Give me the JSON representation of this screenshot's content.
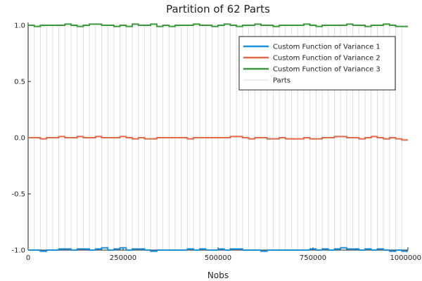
{
  "chart_data": {
    "type": "line",
    "title": "Partition of 62 Parts",
    "xlabel": "Nobs",
    "ylabel": "",
    "xlim": [
      0,
      1000000
    ],
    "ylim": [
      -1.0,
      1.0
    ],
    "x_ticks": [
      0,
      250000,
      500000,
      750000,
      1000000
    ],
    "x_tick_labels": [
      "0",
      "250000",
      "500000",
      "750000",
      "1000000"
    ],
    "y_ticks": [
      -1.0,
      -0.5,
      0.0,
      0.5,
      1.0
    ],
    "y_tick_labels": [
      "-1.0",
      "-0.5",
      "0.0",
      "0.5",
      "1.0"
    ],
    "parts": 62,
    "legend_position": "top-right",
    "series": [
      {
        "name": "Custom Function of Variance 1",
        "color": "#1e8fd8",
        "values": [
          -1.0,
          -1.0,
          -1.01,
          -1.0,
          -1.0,
          -0.99,
          -0.99,
          -1.0,
          -0.99,
          -0.99,
          -1.0,
          -0.99,
          -0.98,
          -1.0,
          -0.99,
          -0.98,
          -1.0,
          -0.99,
          -0.99,
          -1.0,
          -1.01,
          -1.0,
          -1.0,
          -1.0,
          -1.0,
          -1.0,
          -0.99,
          -1.0,
          -0.99,
          -1.0,
          -1.0,
          -0.99,
          -1.0,
          -0.99,
          -0.99,
          -1.0,
          -1.0,
          -1.0,
          -1.01,
          -1.0,
          -1.0,
          -1.0,
          -1.0,
          -1.0,
          -1.0,
          -1.0,
          -0.99,
          -1.0,
          -0.99,
          -1.0,
          -0.99,
          -0.98,
          -0.99,
          -0.99,
          -1.0,
          -0.99,
          -1.0,
          -0.99,
          -1.0,
          -1.01,
          -1.0,
          -1.01
        ]
      },
      {
        "name": "Custom Function of Variance 2",
        "color": "#e06a45",
        "values": [
          0.0,
          0.0,
          -0.01,
          0.0,
          0.0,
          0.01,
          0.0,
          0.0,
          0.01,
          0.0,
          0.0,
          0.01,
          0.0,
          0.0,
          0.0,
          0.01,
          0.0,
          -0.01,
          0.0,
          -0.01,
          -0.01,
          0.0,
          0.0,
          0.0,
          0.0,
          0.0,
          -0.01,
          0.0,
          0.0,
          0.0,
          0.0,
          0.0,
          0.0,
          0.01,
          0.01,
          0.0,
          -0.01,
          0.0,
          0.0,
          -0.01,
          -0.01,
          0.0,
          -0.01,
          -0.01,
          -0.01,
          0.0,
          -0.01,
          -0.01,
          0.0,
          0.0,
          0.01,
          0.01,
          0.0,
          0.0,
          -0.01,
          0.0,
          0.01,
          0.0,
          -0.01,
          0.0,
          -0.01,
          -0.02
        ]
      },
      {
        "name": "Custom Function of Variance 3",
        "color": "#3a9a3a",
        "values": [
          1.0,
          0.99,
          1.0,
          1.0,
          1.0,
          1.0,
          1.01,
          1.0,
          0.99,
          1.0,
          1.01,
          1.01,
          1.0,
          1.0,
          0.99,
          1.0,
          0.99,
          1.01,
          1.0,
          1.0,
          1.01,
          0.99,
          1.0,
          0.99,
          1.0,
          1.0,
          1.0,
          1.01,
          1.0,
          1.0,
          0.99,
          1.0,
          1.01,
          1.0,
          0.99,
          1.0,
          1.0,
          1.01,
          1.0,
          1.0,
          0.99,
          1.0,
          1.0,
          1.0,
          1.0,
          1.01,
          1.0,
          0.99,
          1.0,
          1.0,
          1.0,
          1.0,
          1.01,
          1.0,
          1.0,
          0.99,
          1.0,
          1.0,
          1.01,
          1.0,
          0.99,
          0.99
        ]
      },
      {
        "name": "Parts",
        "color": "#dddddd",
        "values": []
      }
    ]
  }
}
